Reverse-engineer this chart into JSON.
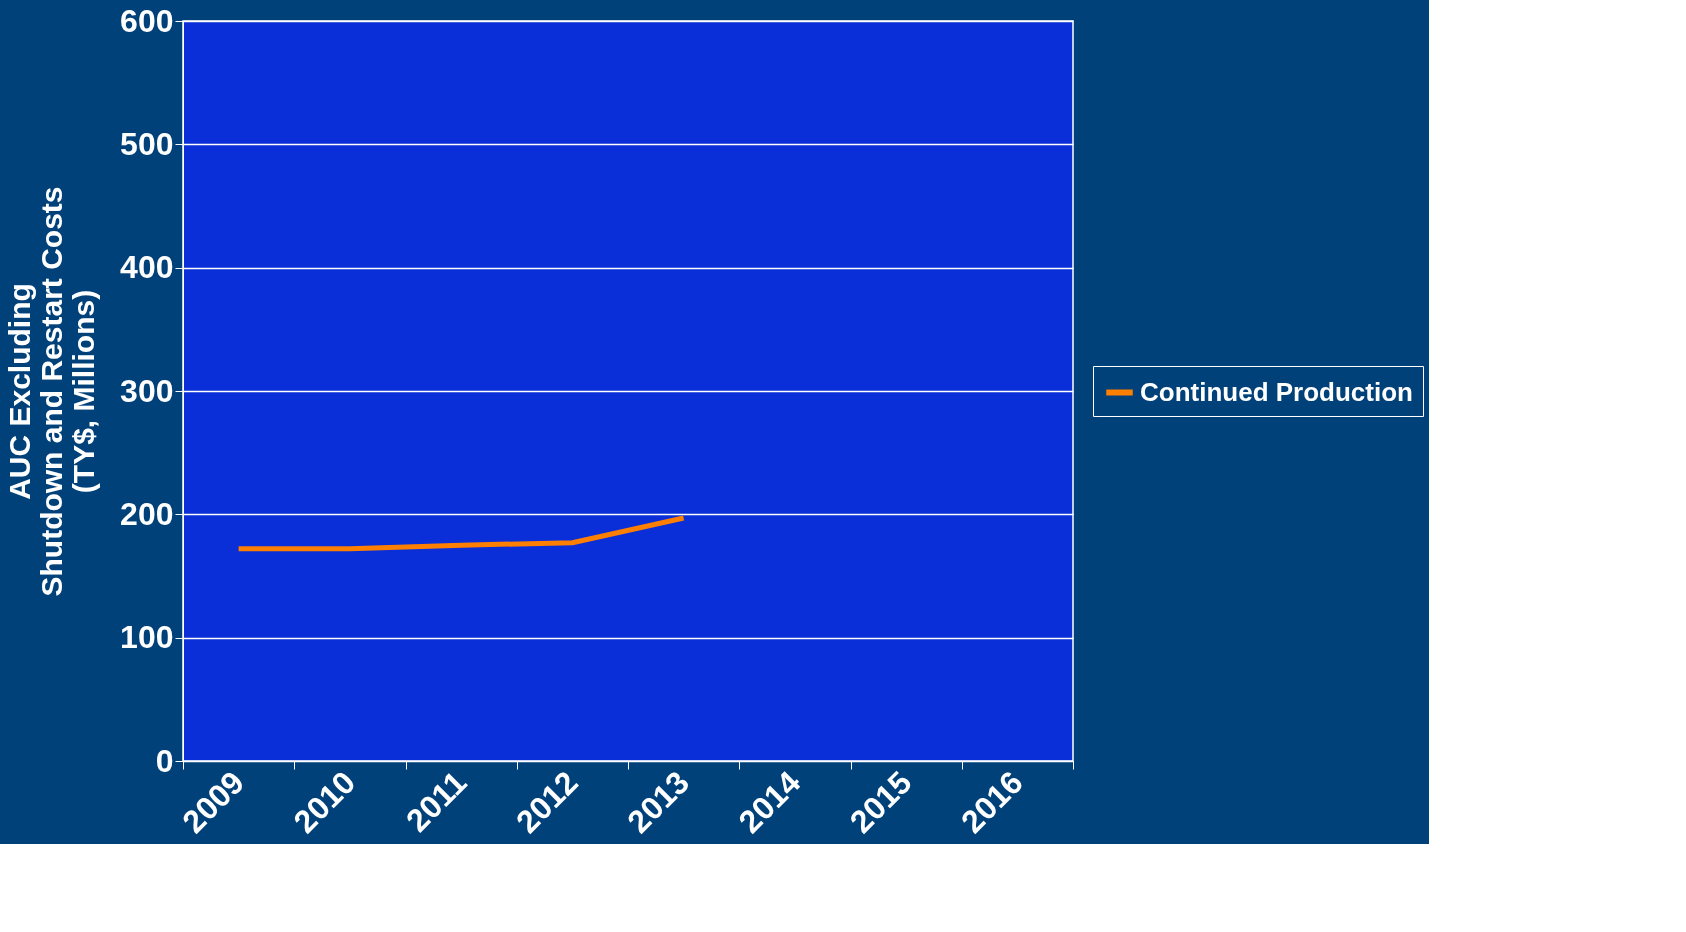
{
  "chart_data": {
    "type": "line",
    "ylabel": "AUC Excluding\nShutdown and Restart Costs\n(TY$, Millions)",
    "categories": [
      "2009",
      "2010",
      "2011",
      "2012",
      "2013",
      "2014",
      "2015",
      "2016"
    ],
    "series": [
      {
        "name": "Continued Production",
        "color": "#ff7f00",
        "values": [
          172,
          172,
          175,
          177,
          197,
          null,
          null,
          null
        ]
      }
    ],
    "ylim": [
      0,
      600
    ],
    "yticks": [
      0,
      100,
      200,
      300,
      400,
      500,
      600
    ],
    "grid": "y",
    "legend": "right"
  }
}
